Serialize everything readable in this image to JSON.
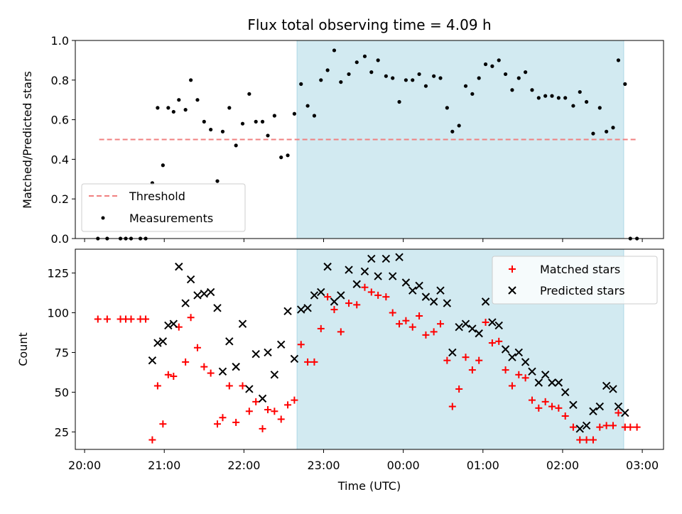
{
  "chart_data": [
    {
      "type": "scatter",
      "title": "Flux total observing time = 4.09 h",
      "xlabel": "",
      "ylabel": "Matched/Predicted stars",
      "ylim": [
        0.0,
        1.0
      ],
      "xlim": [
        "19:53",
        "03:16"
      ],
      "yticks": [
        "0.0",
        "0.2",
        "0.4",
        "0.6",
        "0.8",
        "1.0"
      ],
      "shaded_span": [
        "22:40",
        "02:46"
      ],
      "shade_color": "#add8e6",
      "legend_position": "lower-left",
      "threshold": {
        "name": "Threshold",
        "y": 0.5,
        "x_range": [
          "20:11",
          "02:56"
        ],
        "color": "#f08080",
        "style": "dashed"
      },
      "series": [
        {
          "name": "Measurements",
          "color": "#000000",
          "marker": "dot",
          "points": [
            [
              "20:10",
              0.0
            ],
            [
              "20:17",
              0.0
            ],
            [
              "20:27",
              0.0
            ],
            [
              "20:31",
              0.0
            ],
            [
              "20:35",
              0.0
            ],
            [
              "20:42",
              0.0
            ],
            [
              "20:46",
              0.0
            ],
            [
              "20:51",
              0.28
            ],
            [
              "20:55",
              0.66
            ],
            [
              "20:59",
              0.37
            ],
            [
              "21:03",
              0.66
            ],
            [
              "21:07",
              0.64
            ],
            [
              "21:11",
              0.7
            ],
            [
              "21:16",
              0.65
            ],
            [
              "21:20",
              0.8
            ],
            [
              "21:25",
              0.7
            ],
            [
              "21:30",
              0.59
            ],
            [
              "21:35",
              0.55
            ],
            [
              "21:40",
              0.29
            ],
            [
              "21:44",
              0.54
            ],
            [
              "21:49",
              0.66
            ],
            [
              "21:54",
              0.47
            ],
            [
              "21:59",
              0.58
            ],
            [
              "22:04",
              0.73
            ],
            [
              "22:09",
              0.59
            ],
            [
              "22:14",
              0.59
            ],
            [
              "22:18",
              0.52
            ],
            [
              "22:23",
              0.62
            ],
            [
              "22:28",
              0.41
            ],
            [
              "22:33",
              0.42
            ],
            [
              "22:38",
              0.63
            ],
            [
              "22:43",
              0.78
            ],
            [
              "22:48",
              0.67
            ],
            [
              "22:53",
              0.62
            ],
            [
              "22:58",
              0.8
            ],
            [
              "23:03",
              0.85
            ],
            [
              "23:08",
              0.95
            ],
            [
              "23:13",
              0.79
            ],
            [
              "23:19",
              0.83
            ],
            [
              "23:25",
              0.89
            ],
            [
              "23:31",
              0.92
            ],
            [
              "23:36",
              0.84
            ],
            [
              "23:41",
              0.9
            ],
            [
              "23:47",
              0.82
            ],
            [
              "23:52",
              0.81
            ],
            [
              "23:57",
              0.69
            ],
            [
              "00:02",
              0.8
            ],
            [
              "00:07",
              0.8
            ],
            [
              "00:12",
              0.83
            ],
            [
              "00:17",
              0.77
            ],
            [
              "00:23",
              0.82
            ],
            [
              "00:28",
              0.81
            ],
            [
              "00:33",
              0.66
            ],
            [
              "00:37",
              0.54
            ],
            [
              "00:42",
              0.57
            ],
            [
              "00:47",
              0.77
            ],
            [
              "00:52",
              0.73
            ],
            [
              "00:57",
              0.81
            ],
            [
              "01:02",
              0.88
            ],
            [
              "01:07",
              0.87
            ],
            [
              "01:12",
              0.9
            ],
            [
              "01:17",
              0.83
            ],
            [
              "01:22",
              0.75
            ],
            [
              "01:27",
              0.81
            ],
            [
              "01:32",
              0.84
            ],
            [
              "01:37",
              0.75
            ],
            [
              "01:42",
              0.71
            ],
            [
              "01:47",
              0.72
            ],
            [
              "01:52",
              0.72
            ],
            [
              "01:57",
              0.71
            ],
            [
              "02:02",
              0.71
            ],
            [
              "02:08",
              0.67
            ],
            [
              "02:13",
              0.74
            ],
            [
              "02:18",
              0.69
            ],
            [
              "02:23",
              0.53
            ],
            [
              "02:28",
              0.66
            ],
            [
              "02:33",
              0.54
            ],
            [
              "02:38",
              0.56
            ],
            [
              "02:42",
              0.9
            ],
            [
              "02:47",
              0.78
            ],
            [
              "02:51",
              0.0
            ],
            [
              "02:56",
              0.0
            ]
          ]
        }
      ]
    },
    {
      "type": "scatter",
      "title": "",
      "xlabel": "Time (UTC)",
      "ylabel": "Count",
      "ylim": [
        14,
        140
      ],
      "xlim": [
        "19:53",
        "03:16"
      ],
      "yticks": [
        "25",
        "50",
        "75",
        "100",
        "125"
      ],
      "xticks": [
        "20:00",
        "21:00",
        "22:00",
        "23:00",
        "00:00",
        "01:00",
        "02:00",
        "03:00"
      ],
      "shaded_span": [
        "22:40",
        "02:46"
      ],
      "shade_color": "#add8e6",
      "legend_position": "upper-right",
      "series": [
        {
          "name": "Matched stars",
          "color": "#ff0000",
          "marker": "plus",
          "points": [
            [
              "20:10",
              96
            ],
            [
              "20:17",
              96
            ],
            [
              "20:27",
              96
            ],
            [
              "20:31",
              96
            ],
            [
              "20:35",
              96
            ],
            [
              "20:42",
              96
            ],
            [
              "20:46",
              96
            ],
            [
              "20:51",
              20
            ],
            [
              "20:55",
              54
            ],
            [
              "20:59",
              30
            ],
            [
              "21:03",
              61
            ],
            [
              "21:07",
              60
            ],
            [
              "21:11",
              91
            ],
            [
              "21:16",
              69
            ],
            [
              "21:20",
              97
            ],
            [
              "21:25",
              78
            ],
            [
              "21:30",
              66
            ],
            [
              "21:35",
              62
            ],
            [
              "21:40",
              30
            ],
            [
              "21:44",
              34
            ],
            [
              "21:49",
              54
            ],
            [
              "21:54",
              31
            ],
            [
              "21:59",
              54
            ],
            [
              "22:04",
              38
            ],
            [
              "22:09",
              44
            ],
            [
              "22:14",
              27
            ],
            [
              "22:18",
              39
            ],
            [
              "22:23",
              38
            ],
            [
              "22:28",
              33
            ],
            [
              "22:33",
              42
            ],
            [
              "22:38",
              45
            ],
            [
              "22:43",
              80
            ],
            [
              "22:48",
              69
            ],
            [
              "22:53",
              69
            ],
            [
              "22:58",
              90
            ],
            [
              "23:03",
              110
            ],
            [
              "23:08",
              102
            ],
            [
              "23:13",
              88
            ],
            [
              "23:19",
              106
            ],
            [
              "23:25",
              105
            ],
            [
              "23:31",
              116
            ],
            [
              "23:36",
              113
            ],
            [
              "23:41",
              111
            ],
            [
              "23:47",
              110
            ],
            [
              "23:52",
              100
            ],
            [
              "23:57",
              93
            ],
            [
              "00:02",
              95
            ],
            [
              "00:07",
              91
            ],
            [
              "00:12",
              98
            ],
            [
              "00:17",
              86
            ],
            [
              "00:23",
              88
            ],
            [
              "00:28",
              93
            ],
            [
              "00:33",
              70
            ],
            [
              "00:37",
              41
            ],
            [
              "00:42",
              52
            ],
            [
              "00:47",
              72
            ],
            [
              "00:52",
              64
            ],
            [
              "00:57",
              70
            ],
            [
              "01:02",
              94
            ],
            [
              "01:07",
              81
            ],
            [
              "01:12",
              82
            ],
            [
              "01:17",
              64
            ],
            [
              "01:22",
              54
            ],
            [
              "01:27",
              61
            ],
            [
              "01:32",
              59
            ],
            [
              "01:37",
              45
            ],
            [
              "01:42",
              40
            ],
            [
              "01:47",
              44
            ],
            [
              "01:52",
              41
            ],
            [
              "01:57",
              40
            ],
            [
              "02:02",
              35
            ],
            [
              "02:08",
              28
            ],
            [
              "02:13",
              20
            ],
            [
              "02:18",
              20
            ],
            [
              "02:23",
              20
            ],
            [
              "02:28",
              28
            ],
            [
              "02:33",
              29
            ],
            [
              "02:38",
              29
            ],
            [
              "02:42",
              37
            ],
            [
              "02:47",
              28
            ],
            [
              "02:51",
              28
            ],
            [
              "02:56",
              28
            ]
          ]
        },
        {
          "name": "Predicted stars",
          "color": "#000000",
          "marker": "x",
          "points": [
            [
              "20:51",
              70
            ],
            [
              "20:55",
              81
            ],
            [
              "20:59",
              82
            ],
            [
              "21:03",
              92
            ],
            [
              "21:07",
              93
            ],
            [
              "21:11",
              129
            ],
            [
              "21:16",
              106
            ],
            [
              "21:20",
              121
            ],
            [
              "21:25",
              111
            ],
            [
              "21:30",
              112
            ],
            [
              "21:35",
              113
            ],
            [
              "21:40",
              103
            ],
            [
              "21:44",
              63
            ],
            [
              "21:49",
              82
            ],
            [
              "21:54",
              66
            ],
            [
              "21:59",
              93
            ],
            [
              "22:04",
              52
            ],
            [
              "22:09",
              74
            ],
            [
              "22:14",
              46
            ],
            [
              "22:18",
              75
            ],
            [
              "22:23",
              61
            ],
            [
              "22:28",
              80
            ],
            [
              "22:33",
              101
            ],
            [
              "22:38",
              71
            ],
            [
              "22:43",
              102
            ],
            [
              "22:48",
              103
            ],
            [
              "22:53",
              111
            ],
            [
              "22:58",
              113
            ],
            [
              "23:03",
              129
            ],
            [
              "23:08",
              107
            ],
            [
              "23:13",
              111
            ],
            [
              "23:19",
              127
            ],
            [
              "23:25",
              118
            ],
            [
              "23:31",
              126
            ],
            [
              "23:36",
              134
            ],
            [
              "23:41",
              123
            ],
            [
              "23:47",
              134
            ],
            [
              "23:52",
              123
            ],
            [
              "23:57",
              135
            ],
            [
              "00:02",
              119
            ],
            [
              "00:07",
              114
            ],
            [
              "00:12",
              117
            ],
            [
              "00:17",
              110
            ],
            [
              "00:23",
              107
            ],
            [
              "00:28",
              114
            ],
            [
              "00:33",
              106
            ],
            [
              "00:37",
              75
            ],
            [
              "00:42",
              91
            ],
            [
              "00:47",
              93
            ],
            [
              "00:52",
              90
            ],
            [
              "00:57",
              87
            ],
            [
              "01:02",
              107
            ],
            [
              "01:07",
              94
            ],
            [
              "01:12",
              92
            ],
            [
              "01:17",
              77
            ],
            [
              "01:22",
              72
            ],
            [
              "01:27",
              75
            ],
            [
              "01:32",
              69
            ],
            [
              "01:37",
              63
            ],
            [
              "01:42",
              56
            ],
            [
              "01:47",
              61
            ],
            [
              "01:52",
              56
            ],
            [
              "01:57",
              56
            ],
            [
              "02:02",
              50
            ],
            [
              "02:08",
              42
            ],
            [
              "02:13",
              27
            ],
            [
              "02:18",
              29
            ],
            [
              "02:23",
              38
            ],
            [
              "02:28",
              41
            ],
            [
              "02:33",
              54
            ],
            [
              "02:38",
              52
            ],
            [
              "02:42",
              41
            ],
            [
              "02:47",
              37
            ]
          ]
        }
      ]
    }
  ]
}
